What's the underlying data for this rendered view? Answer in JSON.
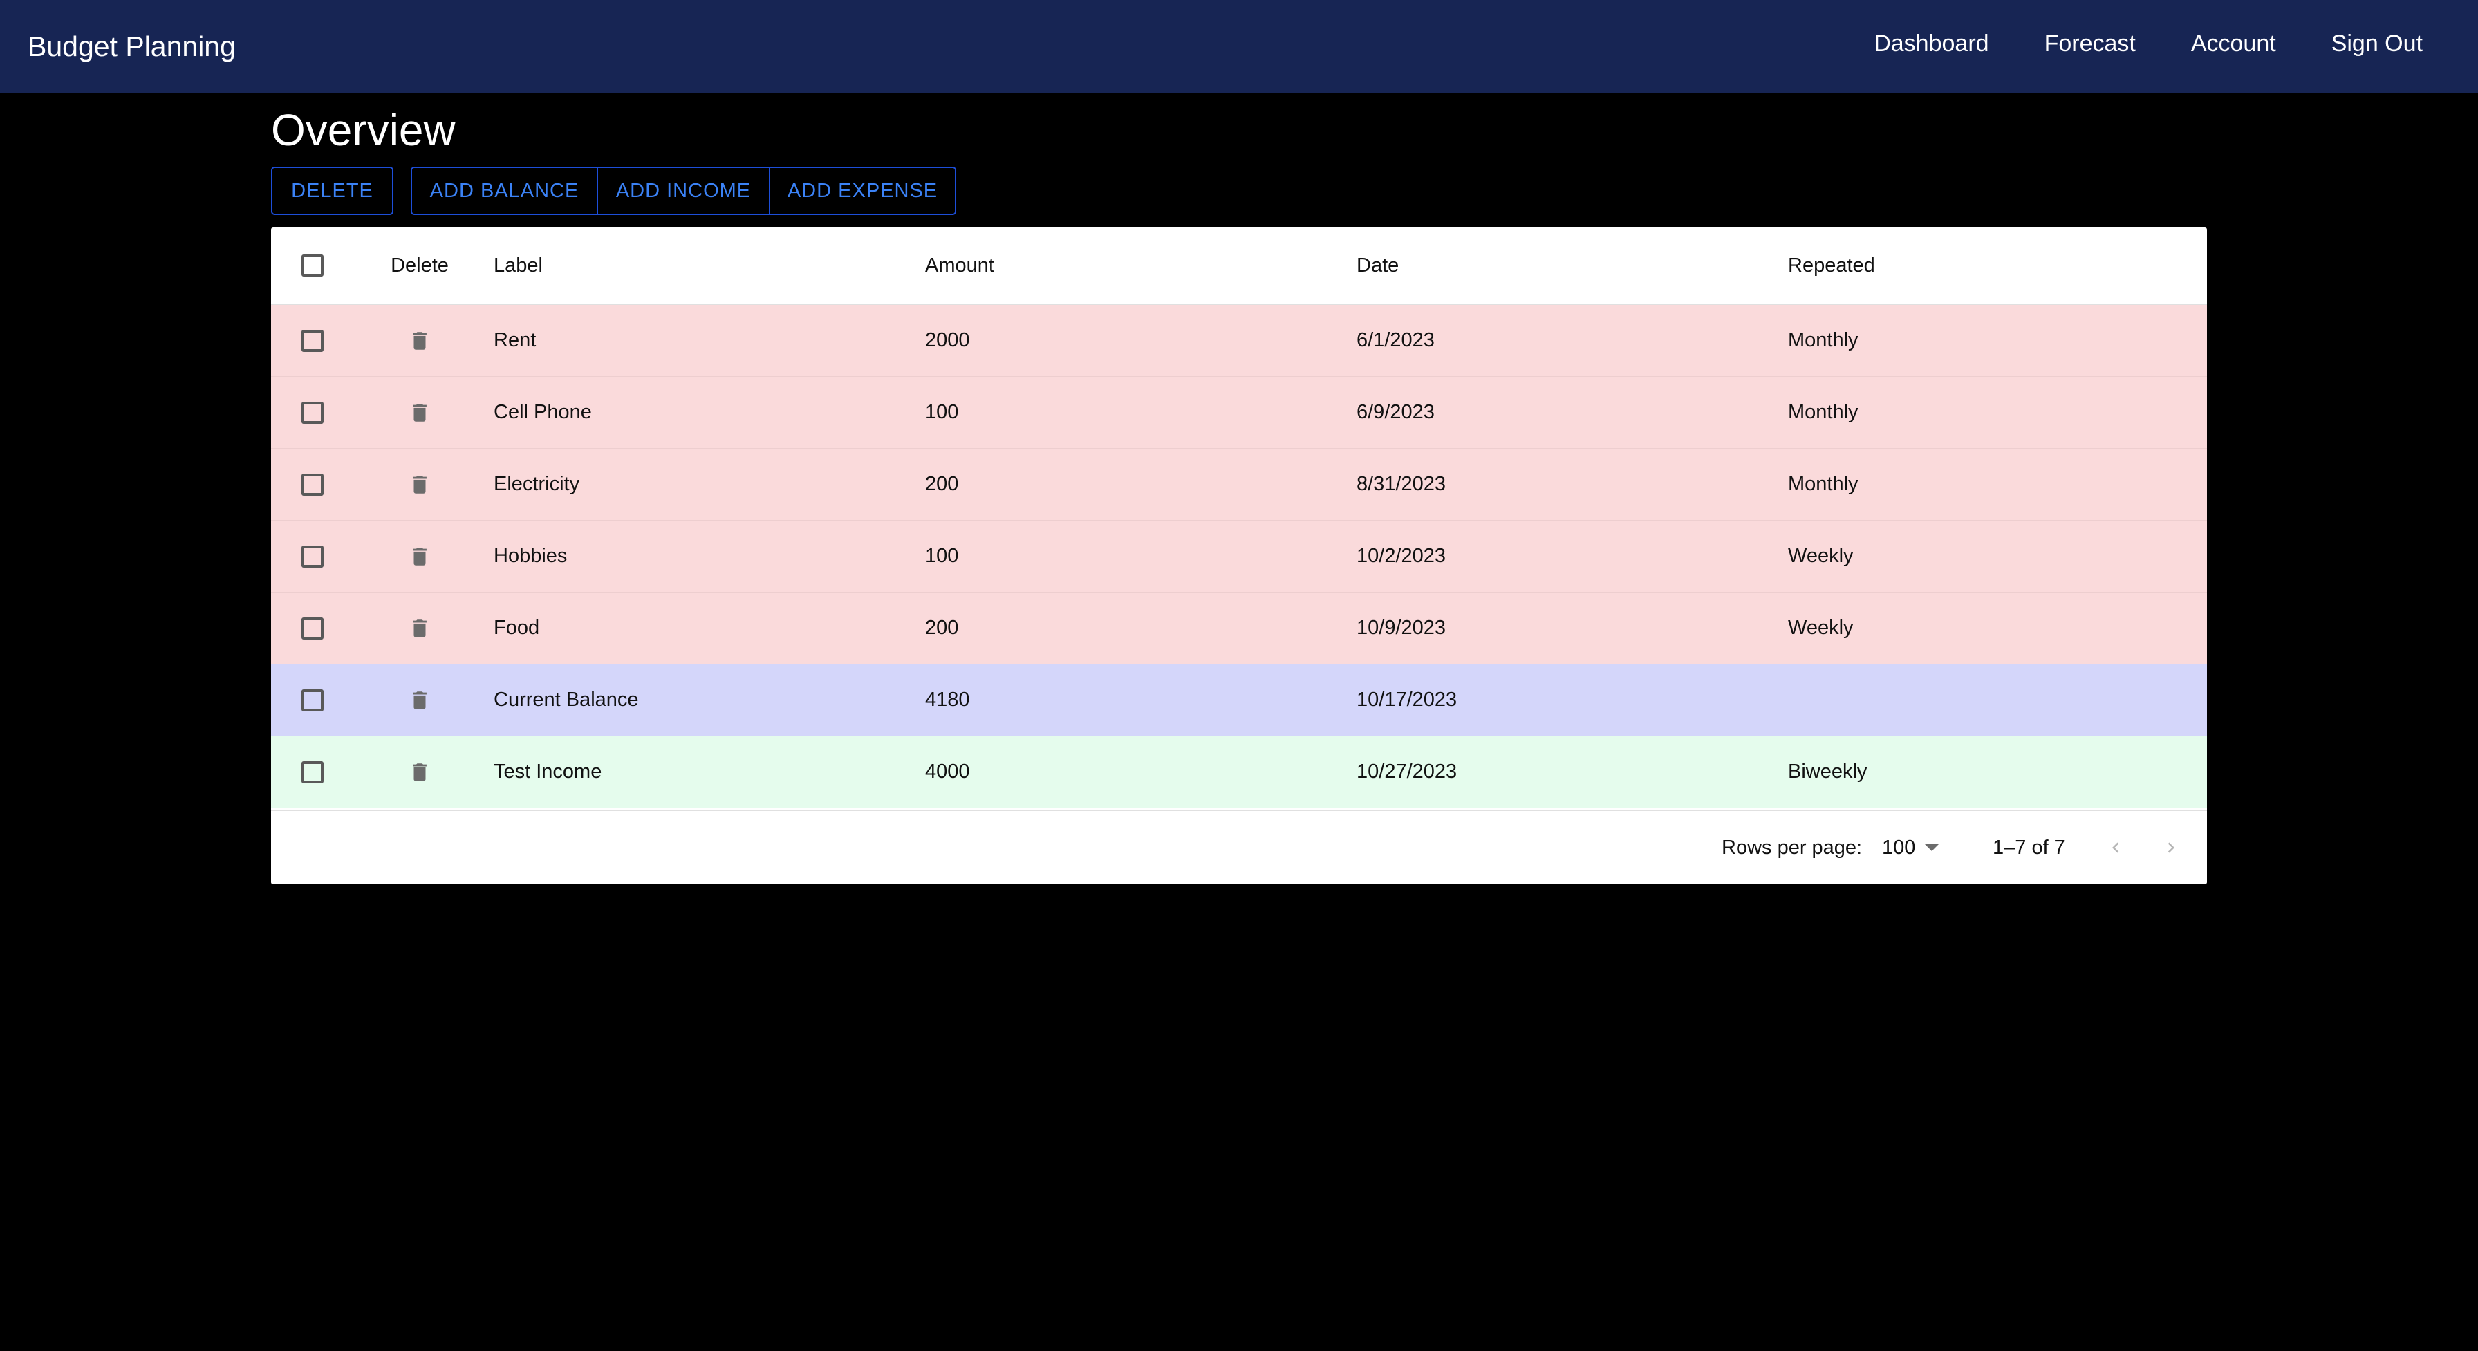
{
  "app": {
    "title": "Budget Planning",
    "colors": {
      "appbar": "#172554",
      "background": "#000000",
      "accent": "#3b82f6",
      "expense_row": "#fadadb",
      "balance_row": "#d4d6fa",
      "income_row": "#e5fced"
    }
  },
  "nav": {
    "items": [
      {
        "label": "Dashboard"
      },
      {
        "label": "Forecast"
      },
      {
        "label": "Account"
      },
      {
        "label": "Sign Out"
      }
    ]
  },
  "page": {
    "title": "Overview"
  },
  "toolbar": {
    "delete_label": "DELETE",
    "add_balance_label": "ADD BALANCE",
    "add_income_label": "ADD INCOME",
    "add_expense_label": "ADD EXPENSE"
  },
  "table": {
    "columns": {
      "delete": "Delete",
      "label": "Label",
      "amount": "Amount",
      "date": "Date",
      "repeated": "Repeated"
    },
    "rows": [
      {
        "label": "Rent",
        "amount": "2000",
        "date": "6/1/2023",
        "repeated": "Monthly",
        "type": "expense"
      },
      {
        "label": "Cell Phone",
        "amount": "100",
        "date": "6/9/2023",
        "repeated": "Monthly",
        "type": "expense"
      },
      {
        "label": "Electricity",
        "amount": "200",
        "date": "8/31/2023",
        "repeated": "Monthly",
        "type": "expense"
      },
      {
        "label": "Hobbies",
        "amount": "100",
        "date": "10/2/2023",
        "repeated": "Weekly",
        "type": "expense"
      },
      {
        "label": "Food",
        "amount": "200",
        "date": "10/9/2023",
        "repeated": "Weekly",
        "type": "expense"
      },
      {
        "label": "Current Balance",
        "amount": "4180",
        "date": "10/17/2023",
        "repeated": "",
        "type": "balance"
      },
      {
        "label": "Test Income",
        "amount": "4000",
        "date": "10/27/2023",
        "repeated": "Biweekly",
        "type": "income"
      }
    ],
    "icons": {
      "row_delete": "trash-icon",
      "prev": "chevron-left-icon",
      "next": "chevron-right-icon",
      "select": "caret-down-icon"
    }
  },
  "pagination": {
    "rows_per_page_label": "Rows per page:",
    "rows_per_page_value": "100",
    "range_text": "1–7 of 7"
  }
}
